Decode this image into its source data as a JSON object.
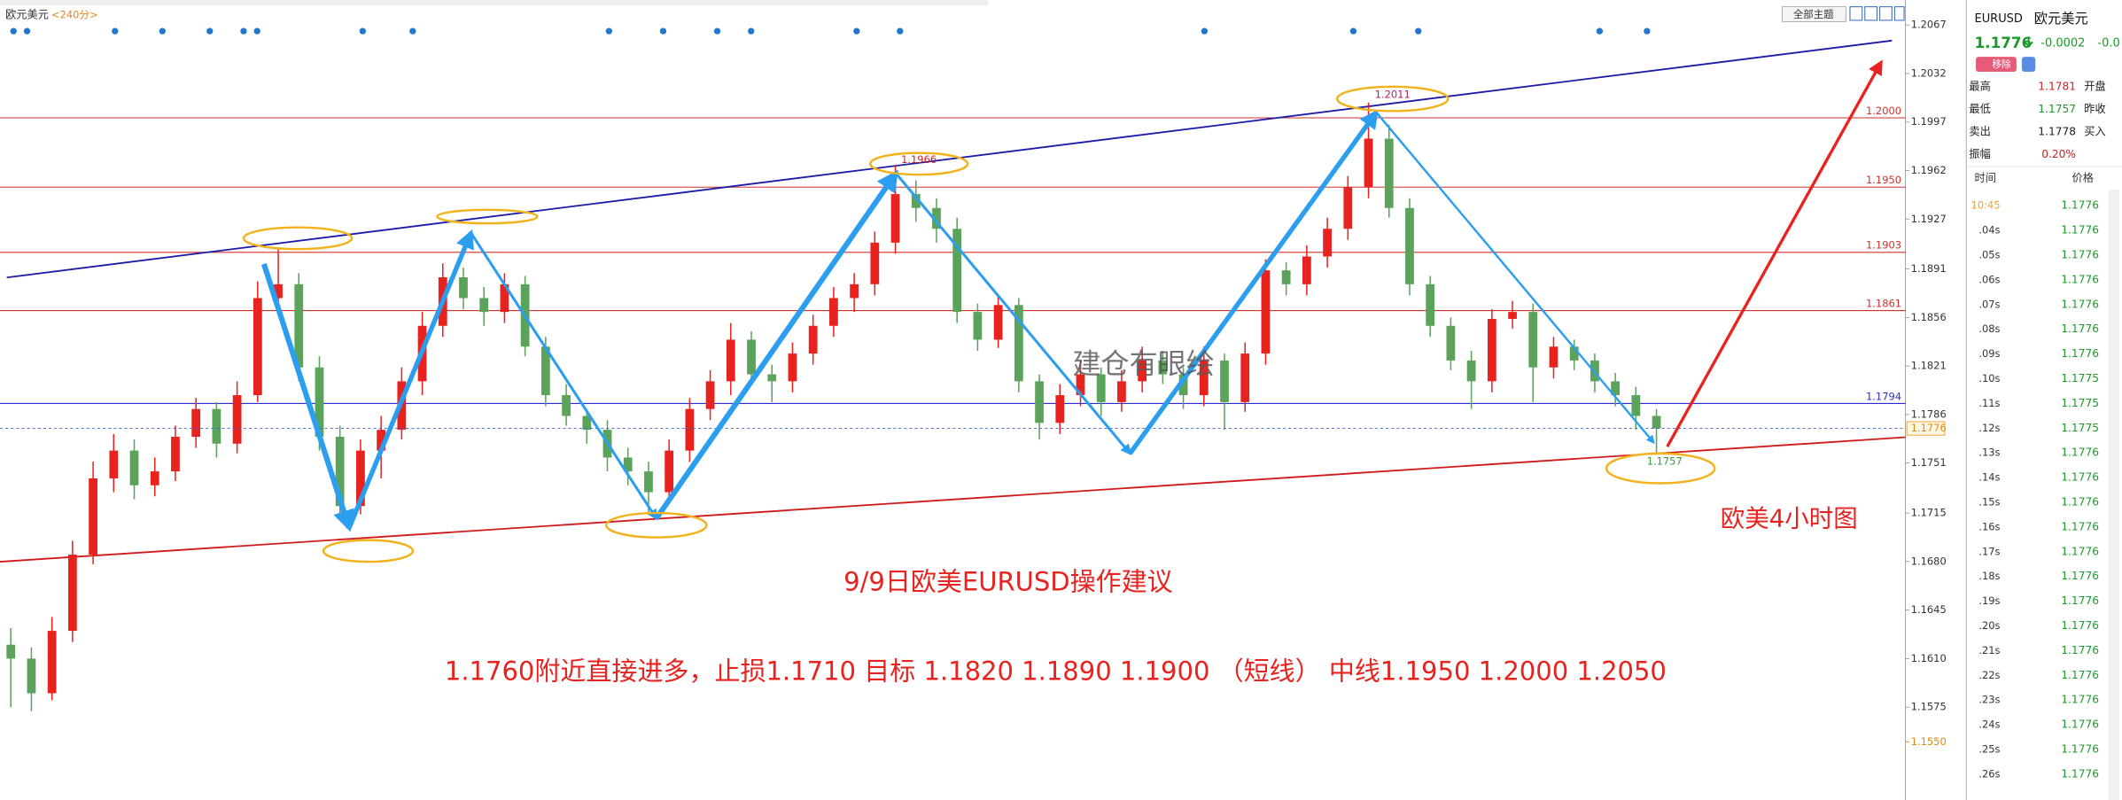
{
  "chart_data": {
    "type": "candlestick",
    "title": "欧元美元",
    "period": "<240分>",
    "theme_button": "全部主题",
    "ylim": [
      1.1508,
      1.2085
    ],
    "yticks": [
      1.2067,
      1.2032,
      1.1997,
      1.1962,
      1.1927,
      1.1891,
      1.1856,
      1.1821,
      1.1786,
      1.1751,
      1.1715,
      {
        "value": 1.168,
        "label": "1.1680"
      },
      1.1645,
      {
        "value": 1.161,
        "label": "1.1610"
      },
      1.1575
    ],
    "up_color": "#e8231f",
    "down_color": "#5ba35a",
    "ohlc": [
      [
        1.162,
        1.1632,
        1.1575,
        1.161
      ],
      [
        1.161,
        1.1618,
        1.1572,
        1.1585
      ],
      [
        1.1585,
        1.164,
        1.158,
        1.163
      ],
      [
        1.163,
        1.1695,
        1.1622,
        1.1685
      ],
      [
        1.1685,
        1.1752,
        1.1678,
        1.174
      ],
      [
        1.174,
        1.1772,
        1.173,
        1.176
      ],
      [
        1.176,
        1.1768,
        1.1725,
        1.1735
      ],
      [
        1.1735,
        1.1755,
        1.1727,
        1.1745
      ],
      [
        1.1745,
        1.1778,
        1.1738,
        1.177
      ],
      [
        1.177,
        1.1798,
        1.1762,
        1.179
      ],
      [
        1.179,
        1.1795,
        1.1755,
        1.1765
      ],
      [
        1.1765,
        1.181,
        1.1758,
        1.18
      ],
      [
        1.18,
        1.1882,
        1.1795,
        1.187
      ],
      [
        1.187,
        1.1905,
        1.186,
        1.188
      ],
      [
        1.188,
        1.1888,
        1.181,
        1.182
      ],
      [
        1.182,
        1.1828,
        1.176,
        1.177
      ],
      [
        1.177,
        1.1778,
        1.1712,
        1.172
      ],
      [
        1.172,
        1.1768,
        1.1714,
        1.176
      ],
      [
        1.176,
        1.1785,
        1.174,
        1.1775
      ],
      [
        1.1775,
        1.182,
        1.1768,
        1.181
      ],
      [
        1.181,
        1.186,
        1.18,
        1.185
      ],
      [
        1.185,
        1.1895,
        1.1842,
        1.1885
      ],
      [
        1.1885,
        1.1892,
        1.1862,
        1.187
      ],
      [
        1.187,
        1.1878,
        1.185,
        1.186
      ],
      [
        1.186,
        1.1888,
        1.1852,
        1.188
      ],
      [
        1.188,
        1.1886,
        1.1828,
        1.1835
      ],
      [
        1.1835,
        1.1842,
        1.1792,
        1.18
      ],
      [
        1.18,
        1.1808,
        1.1778,
        1.1785
      ],
      [
        1.1785,
        1.179,
        1.1765,
        1.1775
      ],
      [
        1.1775,
        1.1782,
        1.1745,
        1.1755
      ],
      [
        1.1755,
        1.1762,
        1.1735,
        1.1745
      ],
      [
        1.1745,
        1.1752,
        1.1715,
        1.173
      ],
      [
        1.173,
        1.1768,
        1.1722,
        1.176
      ],
      [
        1.176,
        1.1798,
        1.1752,
        1.179
      ],
      [
        1.179,
        1.1818,
        1.1782,
        1.181
      ],
      [
        1.181,
        1.1852,
        1.18,
        1.184
      ],
      [
        1.184,
        1.1846,
        1.1808,
        1.1815
      ],
      [
        1.1815,
        1.1822,
        1.1795,
        1.181
      ],
      [
        1.181,
        1.1838,
        1.1802,
        1.183
      ],
      [
        1.183,
        1.1858,
        1.1822,
        1.185
      ],
      [
        1.185,
        1.1878,
        1.1842,
        1.187
      ],
      [
        1.187,
        1.1888,
        1.186,
        1.188
      ],
      [
        1.188,
        1.1918,
        1.1872,
        1.191
      ],
      [
        1.191,
        1.1966,
        1.1902,
        1.1945
      ],
      [
        1.1945,
        1.1955,
        1.1925,
        1.1935
      ],
      [
        1.1935,
        1.1942,
        1.191,
        1.192
      ],
      [
        1.192,
        1.1928,
        1.1852,
        1.186
      ],
      [
        1.186,
        1.1866,
        1.1832,
        1.184
      ],
      [
        1.184,
        1.1872,
        1.1834,
        1.1865
      ],
      [
        1.1865,
        1.187,
        1.1802,
        1.181
      ],
      [
        1.181,
        1.1815,
        1.1768,
        1.178
      ],
      [
        1.178,
        1.1808,
        1.1772,
        1.18
      ],
      [
        1.18,
        1.1825,
        1.1792,
        1.1815
      ],
      [
        1.1815,
        1.182,
        1.1785,
        1.1795
      ],
      [
        1.1795,
        1.1818,
        1.1788,
        1.181
      ],
      [
        1.181,
        1.1835,
        1.1802,
        1.1825
      ],
      [
        1.1825,
        1.1832,
        1.1808,
        1.1815
      ],
      [
        1.1815,
        1.182,
        1.179,
        1.18
      ],
      [
        1.18,
        1.1835,
        1.1792,
        1.1825
      ],
      [
        1.1825,
        1.183,
        1.1775,
        1.1795
      ],
      [
        1.1795,
        1.1838,
        1.1788,
        1.183
      ],
      [
        1.183,
        1.1898,
        1.1822,
        1.189
      ],
      [
        1.189,
        1.1896,
        1.1872,
        1.188
      ],
      [
        1.188,
        1.1908,
        1.1872,
        1.19
      ],
      [
        1.19,
        1.1928,
        1.1892,
        1.192
      ],
      [
        1.192,
        1.1958,
        1.1912,
        1.195
      ],
      [
        1.195,
        1.2011,
        1.1942,
        1.1985
      ],
      [
        1.1985,
        1.1995,
        1.1928,
        1.1935
      ],
      [
        1.1935,
        1.1942,
        1.1872,
        1.188
      ],
      [
        1.188,
        1.1886,
        1.1842,
        1.185
      ],
      [
        1.185,
        1.1856,
        1.1818,
        1.1825
      ],
      [
        1.1825,
        1.1832,
        1.179,
        1.181
      ],
      [
        1.181,
        1.1862,
        1.1802,
        1.1855
      ],
      [
        1.1855,
        1.1868,
        1.1848,
        1.186
      ],
      [
        1.186,
        1.1866,
        1.1795,
        1.182
      ],
      [
        1.182,
        1.1842,
        1.1812,
        1.1835
      ],
      [
        1.1835,
        1.184,
        1.1818,
        1.1825
      ],
      [
        1.1825,
        1.183,
        1.1802,
        1.181
      ],
      [
        1.181,
        1.1816,
        1.1792,
        1.18
      ],
      [
        1.18,
        1.1806,
        1.1775,
        1.1785
      ],
      [
        1.1785,
        1.179,
        1.1757,
        1.1776
      ]
    ],
    "levels": [
      {
        "value": 1.2,
        "label": "1.2000",
        "color": "#d0302a"
      },
      {
        "value": 1.195,
        "label": "1.1950",
        "color": "#d0302a"
      },
      {
        "value": 1.1903,
        "label": "1.1903",
        "color": "#d0302a"
      },
      {
        "value": 1.1861,
        "label": "1.1861",
        "color": "#d0302a"
      },
      {
        "value": 1.1794,
        "label": "1.1794",
        "color": "#2b2bd6"
      }
    ],
    "last_price": {
      "value": 1.1776,
      "label": "1.1776"
    },
    "low_marker": {
      "value": 1.155,
      "label": "1.1550"
    },
    "point_labels": [
      {
        "value": 1.1966,
        "label": "1.1966"
      },
      {
        "value": 1.2011,
        "label": "1.2011"
      },
      {
        "value": 1.1757,
        "label": "1.1757"
      }
    ],
    "annotations": {
      "heading": "9/9日欧美EURUSD操作建议",
      "advice": "1.1760附近直接进多，止损1.1710  目标 1.1820  1.1890  1.1900  （短线）  中线1.1950   1.2000   1.2050",
      "timeframe": "欧美4小时图",
      "watermark": "建仓有眼绘"
    }
  },
  "quote_panel": {
    "symbol": "EURUSD",
    "name": "欧元美元",
    "price": "1.1776",
    "change": "-0.0002",
    "change_pct": "-0.0",
    "remove_button": "移除",
    "stats": [
      [
        "最高",
        "1.1781",
        "开盘"
      ],
      [
        "最低",
        "1.1757",
        "昨收"
      ],
      [
        "卖出",
        "1.1778",
        "买入"
      ],
      [
        "振幅",
        "0.20%"
      ]
    ],
    "tick_header": [
      "时间",
      "价格"
    ],
    "ticks": [
      [
        "10:45",
        "1.1776"
      ],
      [
        ".04s",
        "1.1776"
      ],
      [
        ".05s",
        "1.1776"
      ],
      [
        ".06s",
        "1.1776"
      ],
      [
        ".07s",
        "1.1776"
      ],
      [
        ".08s",
        "1.1776"
      ],
      [
        ".09s",
        "1.1776"
      ],
      [
        ".10s",
        "1.1775"
      ],
      [
        ".11s",
        "1.1775"
      ],
      [
        ".12s",
        "1.1775"
      ],
      [
        ".13s",
        "1.1776"
      ],
      [
        ".14s",
        "1.1776"
      ],
      [
        ".15s",
        "1.1776"
      ],
      [
        ".16s",
        "1.1776"
      ],
      [
        ".17s",
        "1.1776"
      ],
      [
        ".18s",
        "1.1776"
      ],
      [
        ".19s",
        "1.1776"
      ],
      [
        ".20s",
        "1.1776"
      ],
      [
        ".21s",
        "1.1776"
      ],
      [
        ".22s",
        "1.1776"
      ],
      [
        ".23s",
        "1.1776"
      ],
      [
        ".24s",
        "1.1776"
      ],
      [
        ".25s",
        "1.1776"
      ],
      [
        ".26s",
        "1.1776"
      ]
    ]
  }
}
